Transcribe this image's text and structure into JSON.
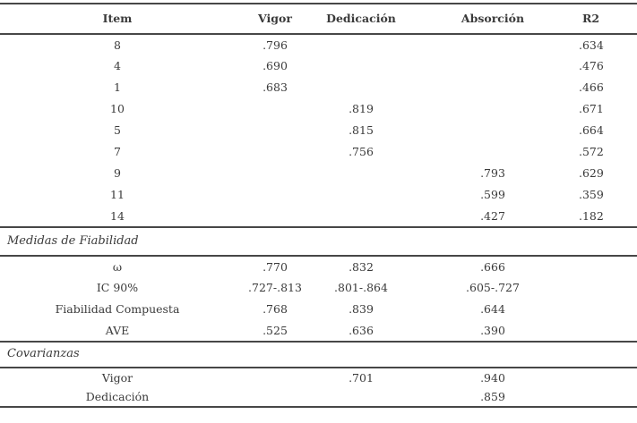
{
  "colors": {
    "text": "#3a3a3a",
    "rule": "#474747",
    "background": "#ffffff"
  },
  "header": {
    "cells": [
      "Item",
      "Vigor",
      "Dedicación",
      "Absorción",
      "R2"
    ]
  },
  "items": {
    "rows": [
      {
        "cells": [
          "8",
          ".796",
          "",
          "",
          ".634"
        ]
      },
      {
        "cells": [
          "4",
          ".690",
          "",
          "",
          ".476"
        ]
      },
      {
        "cells": [
          "1",
          ".683",
          "",
          "",
          ".466"
        ]
      },
      {
        "cells": [
          "10",
          "",
          ".819",
          "",
          ".671"
        ]
      },
      {
        "cells": [
          "5",
          "",
          ".815",
          "",
          ".664"
        ]
      },
      {
        "cells": [
          "7",
          "",
          ".756",
          "",
          ".572"
        ]
      },
      {
        "cells": [
          "9",
          "",
          "",
          ".793",
          ".629"
        ]
      },
      {
        "cells": [
          "11",
          "",
          "",
          ".599",
          ".359"
        ]
      },
      {
        "cells": [
          "14",
          "",
          "",
          ".427",
          ".182"
        ]
      }
    ]
  },
  "reliability": {
    "section_label": "Medidas de Fiabilidad",
    "rows": [
      {
        "cells": [
          "ω",
          ".770",
          ".832",
          ".666",
          ""
        ]
      },
      {
        "cells": [
          "IC 90%",
          ".727-.813",
          ".801-.864",
          ".605-.727",
          ""
        ]
      },
      {
        "cells": [
          "Fiabilidad Compuesta",
          ".768",
          ".839",
          ".644",
          ""
        ]
      },
      {
        "cells": [
          "AVE",
          ".525",
          ".636",
          ".390",
          ""
        ]
      }
    ]
  },
  "covariances": {
    "section_label": "Covarianzas",
    "rows": [
      {
        "cells": [
          "Vigor",
          "",
          ".701",
          ".940",
          ""
        ]
      },
      {
        "cells": [
          "Dedicación",
          "",
          "",
          ".859",
          ""
        ]
      }
    ]
  }
}
